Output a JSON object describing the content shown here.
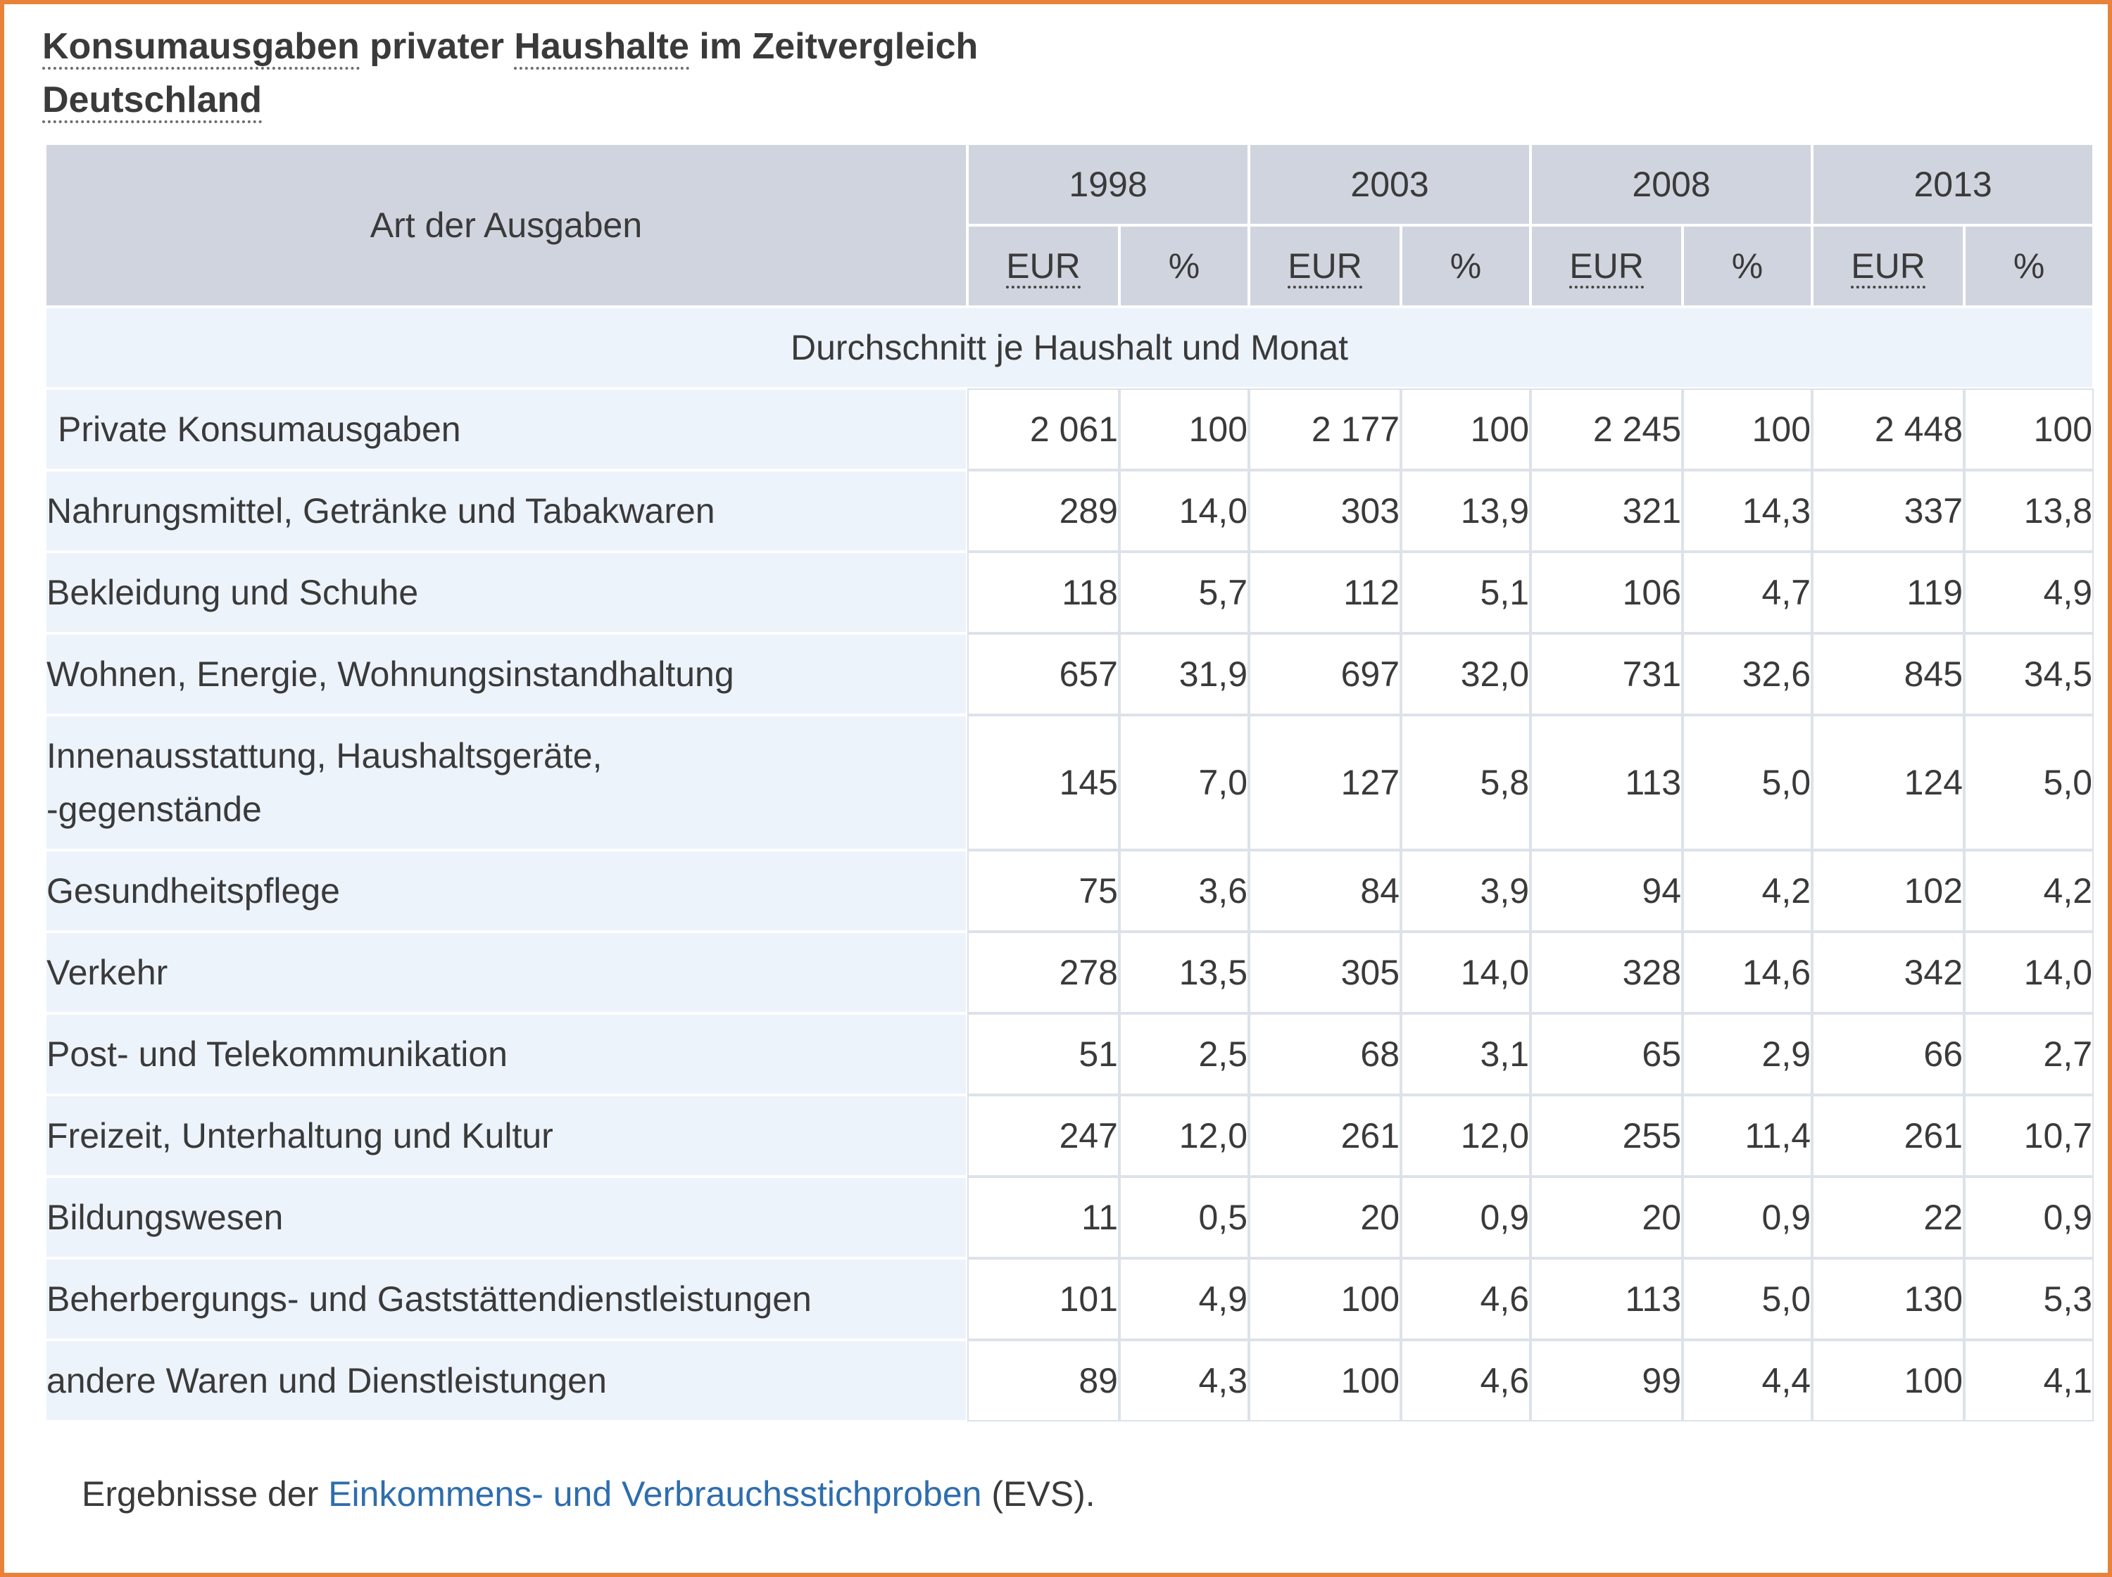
{
  "title": {
    "part1": "Konsumausgaben",
    "part2": " privater ",
    "part3": "Haushalte",
    "part4": " im Zeitvergleich",
    "subtitle": "Deutschland"
  },
  "table": {
    "row_header": "Art der Ausgaben",
    "years": [
      "1998",
      "2003",
      "2008",
      "2013"
    ],
    "unit_eur": "EUR",
    "unit_pct": "%",
    "section_label": "Durchschnitt je Haushalt und Monat",
    "rows": [
      {
        "label": "Private Konsumausgaben",
        "values": [
          "2 061",
          "100",
          "2 177",
          "100",
          "2 245",
          "100",
          "2 448",
          "100"
        ]
      },
      {
        "label": "Nahrungsmittel, Getränke und Tabakwaren",
        "values": [
          "289",
          "14,0",
          "303",
          "13,9",
          "321",
          "14,3",
          "337",
          "13,8"
        ]
      },
      {
        "label": "Bekleidung und Schuhe",
        "values": [
          "118",
          "5,7",
          "112",
          "5,1",
          "106",
          "4,7",
          "119",
          "4,9"
        ]
      },
      {
        "label": "Wohnen, Energie, Wohnungsinstandhaltung",
        "values": [
          "657",
          "31,9",
          "697",
          "32,0",
          "731",
          "32,6",
          "845",
          "34,5"
        ]
      },
      {
        "label_line1": "Innenausstattung, Haushaltsgeräte,",
        "label_line2": "-gegenstände",
        "values": [
          "145",
          "7,0",
          "127",
          "5,8",
          "113",
          "5,0",
          "124",
          "5,0"
        ]
      },
      {
        "label": "Gesundheitspflege",
        "values": [
          "75",
          "3,6",
          "84",
          "3,9",
          "94",
          "4,2",
          "102",
          "4,2"
        ]
      },
      {
        "label": "Verkehr",
        "values": [
          "278",
          "13,5",
          "305",
          "14,0",
          "328",
          "14,6",
          "342",
          "14,0"
        ]
      },
      {
        "label": "Post- und Telekommunikation",
        "values": [
          "51",
          "2,5",
          "68",
          "3,1",
          "65",
          "2,9",
          "66",
          "2,7"
        ]
      },
      {
        "label": "Freizeit, Unterhaltung und Kultur",
        "values": [
          "247",
          "12,0",
          "261",
          "12,0",
          "255",
          "11,4",
          "261",
          "10,7"
        ]
      },
      {
        "label": "Bildungswesen",
        "values": [
          "11",
          "0,5",
          "20",
          "0,9",
          "20",
          "0,9",
          "22",
          "0,9"
        ]
      },
      {
        "label": "Beherbergungs- und Gaststättendienstleistungen",
        "values": [
          "101",
          "4,9",
          "100",
          "4,6",
          "113",
          "5,0",
          "130",
          "5,3"
        ]
      },
      {
        "label": "andere Waren und Dienstleistungen",
        "values": [
          "89",
          "4,3",
          "100",
          "4,6",
          "99",
          "4,4",
          "100",
          "4,1"
        ]
      }
    ]
  },
  "footnote": {
    "before": "Ergebnisse der ",
    "link": "Einkommens- und Verbrauchsstichproben",
    "after": " (EVS)."
  },
  "colors": {
    "frame": "#e8823a",
    "header_bg": "#d0d4de",
    "label_bg": "#edf3fb",
    "link": "#2e6dae"
  }
}
